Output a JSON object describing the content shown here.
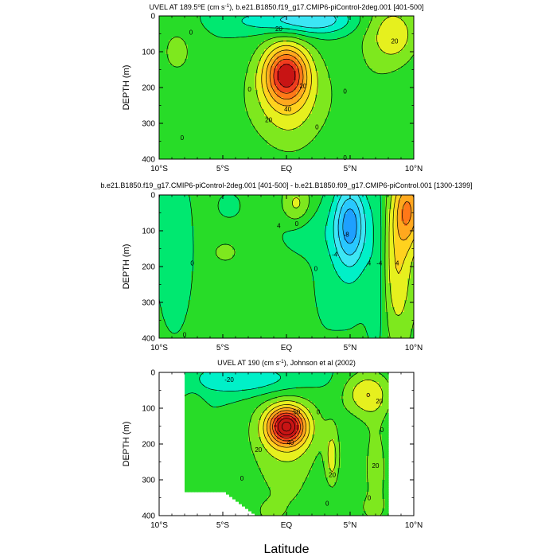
{
  "figure": {
    "x_axis_label": "Latitude"
  },
  "colors": {
    "bg": "#ffffff",
    "line": "#000000",
    "scale": [
      "#1e3cff",
      "#2b6bff",
      "#1ea0ff",
      "#28c8ff",
      "#3ce6f5",
      "#00f0c8",
      "#00e870",
      "#28dc28",
      "#7ee81e",
      "#e6f01e",
      "#ffd21e",
      "#ffa81e",
      "#ff7818",
      "#f03c1e",
      "#c81414"
    ]
  },
  "chart_data": [
    {
      "type": "contour",
      "title_parts": [
        "UVEL AT 189.5",
        "o",
        "E (cm s",
        "-1",
        "), b.e21.B1850.f19_g17.CMIP6-piControl-2deg.001 [401-500]"
      ],
      "xlabel": "",
      "ylabel": "DEPTH (m)",
      "xlim": [
        -10,
        10
      ],
      "ylim": [
        400,
        0
      ],
      "x_ticks": [
        "10°S",
        "5°S",
        "EQ",
        "5°N",
        "10°N"
      ],
      "y_ticks": [
        "0",
        "100",
        "200",
        "300",
        "400"
      ],
      "contour_interval": 10,
      "contour_labels": [
        {
          "text": "20",
          "x": -0.6,
          "y": 35
        },
        {
          "text": "20",
          "x": 8.5,
          "y": 70
        },
        {
          "text": "0",
          "x": -7.5,
          "y": 45
        },
        {
          "text": "0",
          "x": -2.9,
          "y": 205
        },
        {
          "text": "20",
          "x": 1.3,
          "y": 195
        },
        {
          "text": "40",
          "x": 0.1,
          "y": 260
        },
        {
          "text": "20",
          "x": -1.4,
          "y": 290
        },
        {
          "text": "0",
          "x": 2.4,
          "y": 310
        },
        {
          "text": "0",
          "x": 4.6,
          "y": 210
        },
        {
          "text": "0",
          "x": 4.6,
          "y": 395
        },
        {
          "text": "0",
          "x": -8.2,
          "y": 340
        }
      ],
      "background": 0,
      "features": [
        {
          "x": 0,
          "y": 160,
          "sx": 1.2,
          "sy": 55,
          "v": 62
        },
        {
          "x": 0,
          "y": 200,
          "sx": 2.6,
          "sy": 100,
          "v": 14
        },
        {
          "x": 0,
          "y": 260,
          "sx": 2.5,
          "sy": 80,
          "v": 8
        },
        {
          "x": 0.3,
          "y": 320,
          "sx": 1.6,
          "sy": 80,
          "v": 6
        },
        {
          "x": -0.5,
          "y": 15,
          "sx": 3.0,
          "sy": 25,
          "v": -18
        },
        {
          "x": 2.6,
          "y": 10,
          "sx": 2.0,
          "sy": 30,
          "v": -20
        },
        {
          "x": -8.6,
          "y": 100,
          "sx": 1.3,
          "sy": 70,
          "v": 12
        },
        {
          "x": 8.5,
          "y": 50,
          "sx": 1.4,
          "sy": 60,
          "v": 24
        },
        {
          "x": 6.8,
          "y": 150,
          "sx": 1.8,
          "sy": 180,
          "v": 7
        }
      ]
    },
    {
      "type": "contour",
      "title_parts": [
        "b.e21.B1850.f19_g17.CMIP6-piControl-2deg.001 [401-500] - b.e21.B1850.f09_g17.CMIP6-piControl.001 [1300-1399]"
      ],
      "xlabel": "",
      "ylabel": "DEPTH (m)",
      "xlim": [
        -10,
        10
      ],
      "ylim": [
        400,
        0
      ],
      "x_ticks": [
        "10°S",
        "5°S",
        "EQ",
        "5°N",
        "10°N"
      ],
      "y_ticks": [
        "0",
        "100",
        "200",
        "300",
        "400"
      ],
      "contour_interval": 2,
      "contour_labels": [
        {
          "text": "4",
          "x": -0.6,
          "y": 85
        },
        {
          "text": "0",
          "x": 0.8,
          "y": 80
        },
        {
          "text": "-8",
          "x": 4.7,
          "y": 110
        },
        {
          "text": "-4",
          "x": 3.8,
          "y": 165
        },
        {
          "text": "4",
          "x": 6.5,
          "y": 190
        },
        {
          "text": "-4",
          "x": 7.3,
          "y": 190
        },
        {
          "text": "4",
          "x": 8.7,
          "y": 190
        },
        {
          "text": "0",
          "x": -7.4,
          "y": 190
        },
        {
          "text": "0",
          "x": 2.3,
          "y": 205
        },
        {
          "text": "0",
          "x": -8.0,
          "y": 390
        }
      ],
      "background": 1,
      "features": [
        {
          "x": -8.8,
          "y": 150,
          "sx": 1.0,
          "sy": 160,
          "v": -3
        },
        {
          "x": -4.5,
          "y": 30,
          "sx": 0.8,
          "sy": 30,
          "v": -1.8
        },
        {
          "x": 0.8,
          "y": 30,
          "sx": 0.8,
          "sy": 40,
          "v": 4
        },
        {
          "x": -4.8,
          "y": 160,
          "sx": 0.5,
          "sy": 15,
          "v": 3
        },
        {
          "x": 1.2,
          "y": 100,
          "sx": 1.5,
          "sy": 50,
          "v": -2
        },
        {
          "x": 5.0,
          "y": 80,
          "sx": 0.9,
          "sy": 80,
          "v": -9
        },
        {
          "x": 5.0,
          "y": 200,
          "sx": 1.3,
          "sy": 140,
          "v": -2
        },
        {
          "x": 7.2,
          "y": 200,
          "sx": 0.6,
          "sy": 200,
          "v": -2.5
        },
        {
          "x": 9.6,
          "y": 40,
          "sx": 0.8,
          "sy": 70,
          "v": 8
        },
        {
          "x": 8.7,
          "y": 200,
          "sx": 0.9,
          "sy": 140,
          "v": 5
        },
        {
          "x": 2.8,
          "y": 230,
          "sx": 1.0,
          "sy": 170,
          "v": -1
        }
      ]
    },
    {
      "type": "contour",
      "title_parts": [
        "UVEL AT 190 (cm s",
        "-1",
        "), Johnson et al (2002)"
      ],
      "xlabel": "",
      "ylabel": "DEPTH (m)",
      "xlim": [
        -10,
        10
      ],
      "ylim": [
        400,
        0
      ],
      "x_ticks": [
        "10°S",
        "5°S",
        "EQ",
        "5°N",
        "10°N"
      ],
      "y_ticks": [
        "0",
        "100",
        "200",
        "300",
        "400"
      ],
      "contour_interval": 10,
      "data_extent": [
        -8,
        8
      ],
      "contour_labels": [
        {
          "text": "-20",
          "x": -4.5,
          "y": 20
        },
        {
          "text": "20",
          "x": 7.3,
          "y": 80
        },
        {
          "text": "0",
          "x": 2.5,
          "y": 110
        },
        {
          "text": "50",
          "x": 0.8,
          "y": 110
        },
        {
          "text": "40",
          "x": 0.3,
          "y": 195
        },
        {
          "text": "20",
          "x": -2.2,
          "y": 215
        },
        {
          "text": "20",
          "x": 3.6,
          "y": 285
        },
        {
          "text": "20",
          "x": 7.0,
          "y": 260
        },
        {
          "text": "0",
          "x": -3.5,
          "y": 295
        },
        {
          "text": "0",
          "x": 7.5,
          "y": 160
        },
        {
          "text": "0",
          "x": 3.2,
          "y": 365
        },
        {
          "text": "0",
          "x": 6.5,
          "y": 350
        }
      ],
      "background": 0,
      "features": [
        {
          "x": 0,
          "y": 150,
          "sx": 1.0,
          "sy": 35,
          "v": 72
        },
        {
          "x": 0,
          "y": 160,
          "sx": 2.2,
          "sy": 75,
          "v": 18
        },
        {
          "x": -1.0,
          "y": 300,
          "sx": 1.5,
          "sy": 120,
          "v": 8
        },
        {
          "x": 1.0,
          "y": 290,
          "sx": 1.2,
          "sy": 130,
          "v": 6
        },
        {
          "x": 3.6,
          "y": 240,
          "sx": 0.4,
          "sy": 60,
          "v": 22
        },
        {
          "x": -3.5,
          "y": 20,
          "sx": 3.5,
          "sy": 30,
          "v": -20
        },
        {
          "x": 6.3,
          "y": 60,
          "sx": 1.3,
          "sy": 45,
          "v": 28
        },
        {
          "x": 7.0,
          "y": 270,
          "sx": 0.8,
          "sy": 120,
          "v": 14
        },
        {
          "x": -7.3,
          "y": 110,
          "sx": 0.6,
          "sy": 90,
          "v": 6
        },
        {
          "x": -6.6,
          "y": 270,
          "sx": 0.5,
          "sy": 50,
          "v": 6
        },
        {
          "x": -1.5,
          "y": 390,
          "sx": 0.9,
          "sy": 25,
          "v": 6
        },
        {
          "x": 6.5,
          "y": 380,
          "sx": 1.0,
          "sy": 25,
          "v": 6
        }
      ]
    }
  ]
}
